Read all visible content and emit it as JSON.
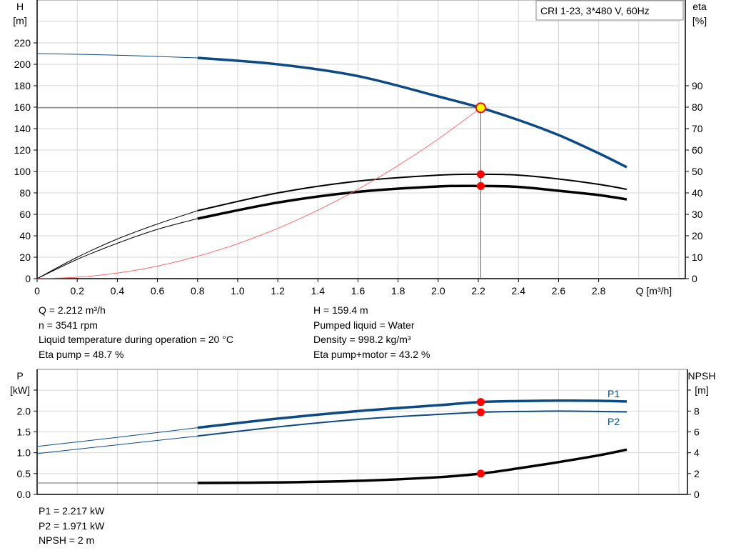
{
  "chart_data": [
    {
      "type": "line",
      "title_box": "CRI 1-23, 3*480 V, 60Hz",
      "xlabel": "Q [m³/h]",
      "ylabel_left": [
        "H",
        "[m]"
      ],
      "ylabel_right": [
        "eta",
        "[%]"
      ],
      "xlim": [
        0,
        3.2
      ],
      "ylim_left": [
        0,
        260
      ],
      "ylim_right": [
        0,
        130
      ],
      "x_ticks": [
        "0",
        "0.2",
        "0.4",
        "0.6",
        "0.8",
        "1.0",
        "1.2",
        "1.4",
        "1.6",
        "1.8",
        "2.0",
        "2.2",
        "2.4",
        "2.6",
        "2.8"
      ],
      "y_ticks_left": [
        "0",
        "20",
        "40",
        "60",
        "80",
        "100",
        "120",
        "140",
        "160",
        "180",
        "200",
        "220"
      ],
      "y_ticks_right": [
        "0",
        "10",
        "20",
        "30",
        "40",
        "50",
        "60",
        "70",
        "80",
        "90"
      ],
      "grid": true,
      "colors": {
        "head": "#0b4a85",
        "eta": "#000000",
        "system": "#ff5050",
        "point": "#ff0000",
        "op_point_fill": "#ffff00"
      },
      "series": [
        {
          "key": "H",
          "axis": "left",
          "color": "#0b4a85",
          "thick_from": 0.8,
          "x": [
            0,
            0.4,
            0.8,
            1.2,
            1.6,
            2.0,
            2.212,
            2.4,
            2.6,
            2.8,
            2.94
          ],
          "y": [
            210,
            208.5,
            206,
            200,
            189,
            170,
            159.4,
            148,
            134,
            117,
            104
          ]
        },
        {
          "key": "eta pump",
          "axis": "right",
          "color": "#000000",
          "thick_from": 0.8,
          "thin_width": 1,
          "thick_width": 2,
          "x": [
            0,
            0.2,
            0.4,
            0.6,
            0.8,
            1.2,
            1.6,
            2.0,
            2.212,
            2.4,
            2.6,
            2.8,
            2.94
          ],
          "y": [
            0,
            10,
            18.5,
            25.5,
            31.7,
            40,
            45.5,
            48.3,
            48.7,
            48.3,
            46.5,
            44,
            41.7
          ]
        },
        {
          "key": "eta pump+motor",
          "axis": "right",
          "color": "#000000",
          "thick_from": 0.8,
          "thin_width": 1,
          "thick_width": 3.5,
          "x": [
            0,
            0.2,
            0.4,
            0.6,
            0.8,
            1.2,
            1.6,
            2.0,
            2.212,
            2.4,
            2.6,
            2.8,
            2.94
          ],
          "y": [
            0,
            9,
            16.5,
            23,
            28,
            35.5,
            40.5,
            43,
            43.2,
            42.8,
            41,
            39,
            37
          ]
        },
        {
          "key": "system",
          "axis": "left",
          "color": "#ff5050",
          "thick_from": 99,
          "thin_width": 0.8,
          "x": [
            0,
            0.2,
            0.4,
            0.6,
            0.8,
            1.0,
            1.2,
            1.4,
            1.6,
            1.8,
            2.0,
            2.212
          ],
          "y": [
            0,
            1.3,
            5.2,
            11.7,
            20.9,
            32.6,
            46.9,
            63.9,
            83.4,
            105.6,
            130.3,
            159.4
          ]
        }
      ],
      "operating_point": {
        "Q": 2.212,
        "H": 159.4,
        "eta_pump": 48.7,
        "eta_pump_motor": 43.2
      }
    },
    {
      "type": "line",
      "ylabel_left": [
        "P",
        "[kW]"
      ],
      "ylabel_right": [
        "NPSH",
        "[m]"
      ],
      "xlim": [
        0,
        3.2
      ],
      "ylim_left": [
        0,
        3.0
      ],
      "ylim_right": [
        0,
        12
      ],
      "y_ticks_left": [
        "0.0",
        "0.5",
        "1.0",
        "1.5",
        "2.0"
      ],
      "y_ticks_right": [
        "0",
        "2",
        "4",
        "6",
        "8"
      ],
      "grid": true,
      "series": [
        {
          "name": "P1",
          "axis": "left",
          "color": "#0b4a85",
          "thick_from": 0.8,
          "thin_width": 1,
          "thick_width": 3.5,
          "x": [
            0,
            0.4,
            0.8,
            1.2,
            1.6,
            2.0,
            2.212,
            2.4,
            2.6,
            2.8,
            2.94
          ],
          "y": [
            1.15,
            1.37,
            1.6,
            1.82,
            2.0,
            2.14,
            2.217,
            2.24,
            2.25,
            2.245,
            2.23
          ]
        },
        {
          "name": "P2",
          "axis": "left",
          "color": "#0b4a85",
          "thick_from": 0.8,
          "thin_width": 1,
          "thick_width": 2,
          "x": [
            0,
            0.4,
            0.8,
            1.2,
            1.6,
            2.0,
            2.212,
            2.4,
            2.6,
            2.8,
            2.94
          ],
          "y": [
            0.98,
            1.19,
            1.4,
            1.62,
            1.8,
            1.92,
            1.971,
            1.99,
            2.0,
            1.99,
            1.98
          ]
        },
        {
          "key": "NPSH",
          "axis": "right",
          "color": "#000000",
          "thick_from": 0.8,
          "thin_width": 1,
          "thick_width": 3.5,
          "thin_color": "#666666",
          "x": [
            0,
            0.8,
            1.2,
            1.6,
            2.0,
            2.212,
            2.4,
            2.6,
            2.8,
            2.94
          ],
          "y": [
            1.1,
            1.1,
            1.15,
            1.3,
            1.65,
            2.0,
            2.5,
            3.1,
            3.75,
            4.3
          ]
        }
      ],
      "operating_point": {
        "P1": 2.217,
        "P2": 1.971,
        "NPSH": 2
      }
    }
  ],
  "info_top": {
    "left": [
      "Q = 2.212 m³/h",
      "n = 3541 rpm",
      "Liquid temperature during operation = 20 °C",
      "Eta pump = 48.7 %"
    ],
    "right": [
      "H = 159.4 m",
      "Pumped liquid = Water",
      "Density = 998.2 kg/m³",
      "Eta pump+motor = 43.2 %"
    ]
  },
  "info_bottom": [
    "P1 = 2.217 kW",
    "P2 = 1.971 kW",
    "NPSH = 2 m"
  ]
}
